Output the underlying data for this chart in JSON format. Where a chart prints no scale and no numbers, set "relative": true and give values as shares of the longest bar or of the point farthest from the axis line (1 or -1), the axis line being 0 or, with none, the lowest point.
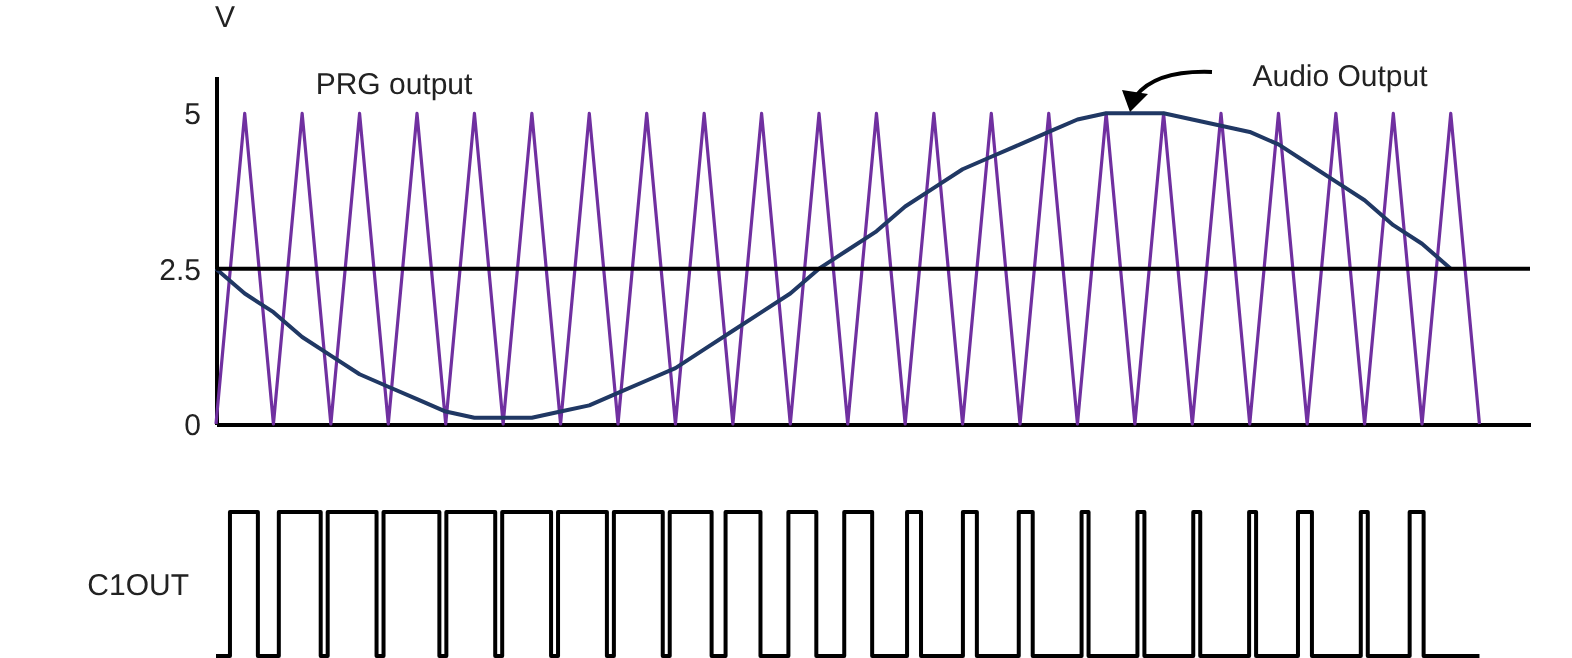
{
  "chart_data": [
    {
      "type": "line",
      "ylabel": "V",
      "ylim": [
        0,
        5.6
      ],
      "yticks": [
        0,
        2.5,
        5
      ],
      "categories": [
        null,
        null,
        null,
        null,
        null,
        null,
        null,
        null,
        null,
        null,
        null,
        null,
        null,
        null,
        null,
        null,
        null,
        null,
        null,
        null,
        null,
        null,
        null,
        null,
        null,
        null,
        null,
        null,
        null,
        null,
        null,
        null,
        null,
        null,
        null,
        null,
        null,
        null,
        null,
        null,
        null,
        null,
        null,
        null,
        null
      ],
      "series": [
        {
          "name": "PRG output",
          "color": "#7030a0",
          "values": [
            0,
            5,
            0,
            5,
            0,
            5,
            0,
            5,
            0,
            5,
            0,
            5,
            0,
            5,
            0,
            5,
            0,
            5,
            0,
            5,
            0,
            5,
            0,
            5,
            0,
            5,
            0,
            5,
            0,
            5,
            0,
            5,
            0,
            5,
            0,
            5,
            0,
            5,
            0,
            5,
            0,
            5,
            0,
            5,
            0
          ]
        },
        {
          "name": "Audio Output",
          "color": "#203864",
          "values": [
            2.5,
            2.1,
            1.8,
            1.4,
            1.1,
            0.8,
            0.6,
            0.4,
            0.2,
            0.1,
            0.1,
            0.1,
            0.2,
            0.3,
            0.5,
            0.7,
            0.9,
            1.2,
            1.5,
            1.8,
            2.1,
            2.5,
            2.8,
            3.1,
            3.5,
            3.8,
            4.1,
            4.3,
            4.5,
            4.7,
            4.9,
            5,
            5,
            5,
            4.9,
            4.8,
            4.7,
            4.5,
            4.2,
            3.9,
            3.6,
            3.2,
            2.9,
            2.5,
            null
          ]
        }
      ],
      "ref_lines": [
        {
          "axis": "y",
          "value": 2.5,
          "color": "#000000"
        }
      ]
    },
    {
      "type": "step",
      "ylabel": "C1OUT",
      "relative": true,
      "color": "#000000",
      "categories": [
        null,
        null,
        null,
        null,
        null,
        null,
        null,
        null,
        null,
        null,
        null,
        null,
        null,
        null,
        null,
        null,
        null,
        null,
        null,
        null,
        null,
        null,
        null,
        null,
        null,
        null,
        null,
        null,
        null,
        null,
        null,
        null,
        null,
        null,
        null,
        null,
        null,
        null,
        null,
        null,
        null,
        null,
        null,
        null,
        null,
        null,
        null,
        null,
        null,
        null,
        null,
        null,
        null,
        null,
        null,
        null,
        null,
        null,
        null,
        null,
        null,
        null,
        null,
        null,
        null,
        null,
        null,
        null,
        null,
        null,
        null,
        null,
        null,
        null,
        null,
        null,
        null,
        null,
        null,
        null,
        null,
        null,
        null,
        null,
        null,
        null,
        null,
        null,
        null,
        null,
        null,
        null,
        null,
        null,
        null,
        null,
        null,
        null,
        null,
        null,
        null,
        null,
        null,
        null,
        null,
        null,
        null,
        null,
        null,
        null,
        null,
        null,
        null,
        null,
        null,
        null,
        null,
        null,
        null,
        null,
        null,
        null,
        null,
        null,
        null,
        null,
        null,
        null,
        null,
        null,
        null,
        null,
        null,
        null,
        null,
        null,
        null,
        null,
        null,
        null,
        null,
        null,
        null,
        null,
        null,
        null,
        null,
        null,
        null,
        null,
        null,
        null,
        null,
        null,
        null,
        null,
        null,
        null,
        null,
        null,
        null,
        null,
        null,
        null,
        null,
        null,
        null,
        null,
        null,
        null,
        null,
        null,
        null,
        null,
        null,
        null,
        null,
        null,
        null,
        null,
        null,
        null
      ],
      "values": [
        0,
        0,
        1,
        1,
        1,
        1,
        0,
        0,
        0,
        1,
        1,
        1,
        1,
        1,
        1,
        0,
        1,
        1,
        1,
        1,
        1,
        1,
        1,
        0,
        1,
        1,
        1,
        1,
        1,
        1,
        1,
        1,
        0,
        1,
        1,
        1,
        1,
        1,
        1,
        1,
        0,
        1,
        1,
        1,
        1,
        1,
        1,
        1,
        0,
        1,
        1,
        1,
        1,
        1,
        1,
        1,
        0,
        1,
        1,
        1,
        1,
        1,
        1,
        1,
        0,
        1,
        1,
        1,
        1,
        1,
        1,
        0,
        0,
        1,
        1,
        1,
        1,
        1,
        0,
        0,
        0,
        0,
        1,
        1,
        1,
        1,
        0,
        0,
        0,
        0,
        1,
        1,
        1,
        1,
        0,
        0,
        0,
        0,
        0,
        1,
        1,
        0,
        0,
        0,
        0,
        0,
        0,
        1,
        1,
        0,
        0,
        0,
        0,
        0,
        0,
        1,
        1,
        0,
        0,
        0,
        0,
        0,
        0,
        0,
        1,
        0,
        0,
        0,
        0,
        0,
        0,
        0,
        1,
        0,
        0,
        0,
        0,
        0,
        0,
        0,
        1,
        0,
        0,
        0,
        0,
        0,
        0,
        0,
        1,
        0,
        0,
        0,
        0,
        0,
        0,
        1,
        1,
        0,
        0,
        0,
        0,
        0,
        0,
        0,
        1,
        0,
        0,
        0,
        0,
        0,
        0,
        1,
        1,
        0,
        0,
        0,
        0,
        0,
        0,
        0,
        0,
        0
      ]
    }
  ]
}
